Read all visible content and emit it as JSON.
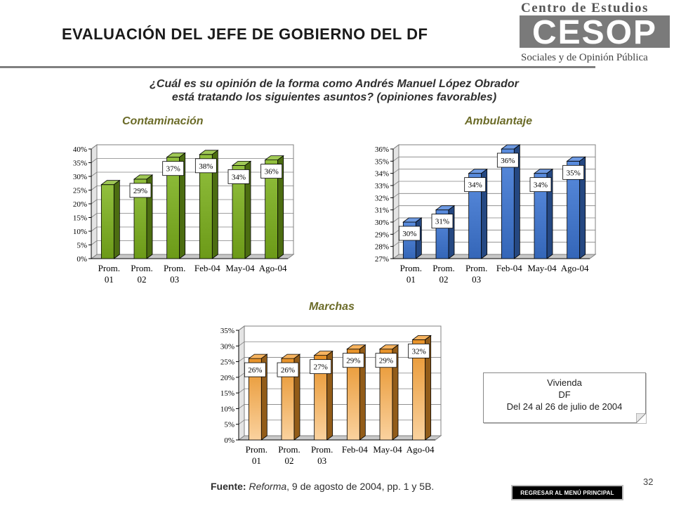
{
  "header": {
    "title": "EVALUACIÓN DEL JEFE DE GOBIERNO DEL DF",
    "logo": {
      "line1": "Centro de Estudios",
      "wordmark": "CESOP",
      "line2": "Sociales y de Opinión Pública"
    }
  },
  "question": "¿Cuál es su opinión de la forma como Andrés Manuel López Obrador está tratando los siguientes asuntos? (opiniones favorables)",
  "colors": {
    "green": "#7fb51c",
    "blue": "#3d78d8",
    "orange": "#f39a2a",
    "chart_title": "#6b6b28"
  },
  "chart_data": [
    {
      "type": "bar",
      "title": "Contaminación",
      "categories": [
        "Prom. 01",
        "Prom. 02",
        "Prom. 03",
        "Feb-04",
        "May-04",
        "Ago-04"
      ],
      "values": [
        27,
        29,
        37,
        38,
        34,
        36
      ],
      "data_labels": [
        "",
        "29%",
        "37%",
        "38%",
        "34%",
        "36%"
      ],
      "yticks": [
        "0%",
        "5%",
        "10%",
        "15%",
        "20%",
        "25%",
        "30%",
        "35%",
        "40%"
      ],
      "ylim": [
        0,
        40
      ],
      "grid": true
    },
    {
      "type": "bar",
      "title": "Ambulantaje",
      "categories": [
        "Prom. 01",
        "Prom. 02",
        "Prom. 03",
        "Feb-04",
        "May-04",
        "Ago-04"
      ],
      "values": [
        30,
        31,
        34,
        36,
        34,
        35
      ],
      "data_labels": [
        "30%",
        "31%",
        "34%",
        "36%",
        "34%",
        "35%"
      ],
      "yticks": [
        "27%",
        "28%",
        "29%",
        "30%",
        "31%",
        "32%",
        "33%",
        "34%",
        "35%",
        "36%"
      ],
      "ylim": [
        27,
        36
      ],
      "grid": true
    },
    {
      "type": "bar",
      "title": "Marchas",
      "categories": [
        "Prom. 01",
        "Prom. 02",
        "Prom. 03",
        "Feb-04",
        "May-04",
        "Ago-04"
      ],
      "values": [
        26,
        26,
        27,
        29,
        29,
        32
      ],
      "data_labels": [
        "26%",
        "26%",
        "27%",
        "29%",
        "29%",
        "32%"
      ],
      "yticks": [
        "0%",
        "5%",
        "10%",
        "15%",
        "20%",
        "25%",
        "30%",
        "35%"
      ],
      "ylim": [
        0,
        35
      ],
      "grid": true
    }
  ],
  "info_box": {
    "line1": "Vivienda",
    "line2": "DF",
    "line3": "Del 24 al 26 de julio de 2004"
  },
  "source": {
    "label": "Fuente:",
    "publication": "Reforma",
    "rest": ", 9 de agosto de 2004, pp. 1 y 5B."
  },
  "page_number": "32",
  "menu_button_label": "REGRESAR AL MENÚ PRINCIPAL"
}
